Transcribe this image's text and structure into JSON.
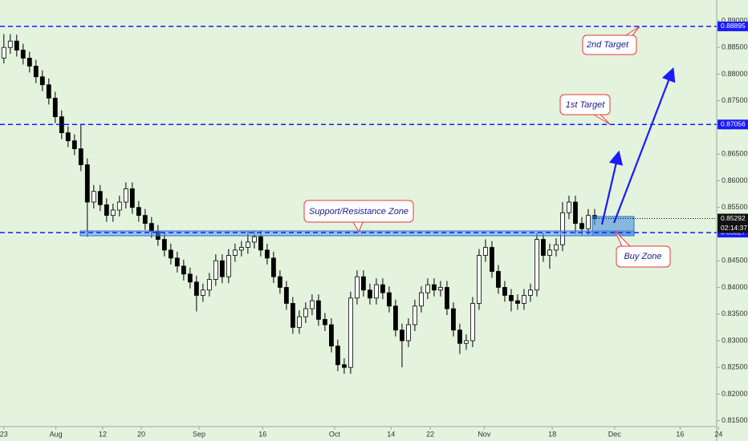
{
  "chart_data": {
    "type": "candlestick",
    "open": [
      0.883,
      0.885,
      0.8862,
      0.8845,
      0.883,
      0.8815,
      0.8795,
      0.878,
      0.8755,
      0.872,
      0.869,
      0.8675,
      0.866,
      0.863,
      0.856,
      0.858,
      0.8555,
      0.8535,
      0.8545,
      0.856,
      0.8585,
      0.855,
      0.8535,
      0.852,
      0.8505,
      0.849,
      0.847,
      0.8455,
      0.844,
      0.8425,
      0.841,
      0.8385,
      0.8395,
      0.8415,
      0.845,
      0.842,
      0.846,
      0.847,
      0.8475,
      0.8485,
      0.8495,
      0.847,
      0.8455,
      0.842,
      0.84,
      0.837,
      0.8325,
      0.8345,
      0.836,
      0.8375,
      0.834,
      0.833,
      0.829,
      0.8255,
      0.825,
      0.838,
      0.842,
      0.8395,
      0.838,
      0.8405,
      0.839,
      0.8365,
      0.832,
      0.83,
      0.833,
      0.8365,
      0.839,
      0.8405,
      0.8395,
      0.84,
      0.836,
      0.832,
      0.8295,
      0.83,
      0.837,
      0.846,
      0.8475,
      0.843,
      0.84,
      0.8385,
      0.8375,
      0.837,
      0.8385,
      0.8395,
      0.849,
      0.846,
      0.847,
      0.848,
      0.854,
      0.856,
      0.852,
      0.851,
      0.8535
    ],
    "high": [
      0.8875,
      0.8875,
      0.8874,
      0.8857,
      0.8842,
      0.8827,
      0.8807,
      0.8792,
      0.8767,
      0.8732,
      0.8702,
      0.8687,
      0.8705,
      0.8642,
      0.8592,
      0.8592,
      0.8567,
      0.8557,
      0.8572,
      0.8597,
      0.8597,
      0.8562,
      0.8547,
      0.8532,
      0.8517,
      0.8502,
      0.8482,
      0.8467,
      0.8452,
      0.8437,
      0.8422,
      0.8407,
      0.8427,
      0.8462,
      0.8462,
      0.8472,
      0.8482,
      0.8487,
      0.8505,
      0.8507,
      0.8507,
      0.8482,
      0.8467,
      0.8432,
      0.8412,
      0.8382,
      0.8357,
      0.8372,
      0.8387,
      0.8387,
      0.8352,
      0.8342,
      0.8302,
      0.8267,
      0.8392,
      0.8432,
      0.8432,
      0.8407,
      0.8417,
      0.8417,
      0.8402,
      0.8377,
      0.8332,
      0.8342,
      0.8377,
      0.8402,
      0.8417,
      0.8417,
      0.8412,
      0.8412,
      0.8372,
      0.8332,
      0.8312,
      0.8382,
      0.8472,
      0.849,
      0.8487,
      0.8442,
      0.8412,
      0.8397,
      0.8387,
      0.8397,
      0.8407,
      0.8502,
      0.8502,
      0.8482,
      0.8492,
      0.856,
      0.8572,
      0.8572,
      0.8532,
      0.8547,
      0.8547
    ],
    "low": [
      0.882,
      0.8838,
      0.8833,
      0.8818,
      0.8803,
      0.8783,
      0.8768,
      0.8743,
      0.8708,
      0.8678,
      0.8663,
      0.8648,
      0.8618,
      0.8495,
      0.8548,
      0.8543,
      0.8523,
      0.8523,
      0.8533,
      0.8548,
      0.8538,
      0.8523,
      0.8508,
      0.8493,
      0.8478,
      0.8458,
      0.8443,
      0.8428,
      0.8413,
      0.8398,
      0.8355,
      0.8373,
      0.8383,
      0.8403,
      0.8408,
      0.8408,
      0.8448,
      0.8458,
      0.8463,
      0.8473,
      0.8458,
      0.8443,
      0.8408,
      0.8388,
      0.8358,
      0.8313,
      0.8313,
      0.8333,
      0.8348,
      0.8328,
      0.8318,
      0.8278,
      0.8243,
      0.8238,
      0.8238,
      0.8368,
      0.8383,
      0.8368,
      0.8368,
      0.8378,
      0.8353,
      0.8308,
      0.825,
      0.8288,
      0.8318,
      0.8353,
      0.8378,
      0.8383,
      0.8383,
      0.8348,
      0.8308,
      0.8275,
      0.8283,
      0.8288,
      0.8358,
      0.8448,
      0.8418,
      0.8388,
      0.8373,
      0.8355,
      0.8358,
      0.8358,
      0.8373,
      0.8383,
      0.8448,
      0.8435,
      0.8458,
      0.8468,
      0.8528,
      0.85,
      0.8498,
      0.8498,
      0.8517
    ],
    "close": [
      0.885,
      0.8862,
      0.8845,
      0.883,
      0.8815,
      0.8795,
      0.878,
      0.8755,
      0.872,
      0.869,
      0.8675,
      0.866,
      0.863,
      0.856,
      0.858,
      0.8555,
      0.8535,
      0.8545,
      0.856,
      0.8585,
      0.855,
      0.8535,
      0.852,
      0.8505,
      0.849,
      0.847,
      0.8455,
      0.844,
      0.8425,
      0.841,
      0.8385,
      0.8395,
      0.8415,
      0.845,
      0.842,
      0.846,
      0.847,
      0.8475,
      0.8485,
      0.8495,
      0.847,
      0.8455,
      0.842,
      0.84,
      0.837,
      0.8325,
      0.8345,
      0.836,
      0.8375,
      0.834,
      0.833,
      0.829,
      0.8255,
      0.825,
      0.838,
      0.842,
      0.8395,
      0.838,
      0.8405,
      0.839,
      0.8365,
      0.832,
      0.83,
      0.833,
      0.8365,
      0.839,
      0.8405,
      0.8395,
      0.84,
      0.836,
      0.832,
      0.8295,
      0.83,
      0.837,
      0.846,
      0.8475,
      0.843,
      0.84,
      0.8385,
      0.8375,
      0.837,
      0.8385,
      0.8395,
      0.849,
      0.846,
      0.847,
      0.848,
      0.854,
      0.856,
      0.852,
      0.851,
      0.8535,
      0.8529
    ],
    "up_color": "#ffffff",
    "down_color": "#000000",
    "ylim": [
      0.8139,
      0.8939
    ],
    "yticks": [
      {
        "value": 0.815,
        "label": "0.81500"
      },
      {
        "value": 0.82,
        "label": "0.82000"
      },
      {
        "value": 0.825,
        "label": "0.82500"
      },
      {
        "value": 0.83,
        "label": "0.83000"
      },
      {
        "value": 0.835,
        "label": "0.83500"
      },
      {
        "value": 0.84,
        "label": "0.84000"
      },
      {
        "value": 0.845,
        "label": "0.84500"
      },
      {
        "value": 0.85,
        "label": "0.85000"
      },
      {
        "value": 0.855,
        "label": "0.85500"
      },
      {
        "value": 0.86,
        "label": "0.86000"
      },
      {
        "value": 0.865,
        "label": "0.86500"
      },
      {
        "value": 0.87,
        "label": "0.87000"
      },
      {
        "value": 0.875,
        "label": "0.87500"
      },
      {
        "value": 0.88,
        "label": "0.88000"
      },
      {
        "value": 0.885,
        "label": "0.88500"
      },
      {
        "value": 0.89,
        "label": "0.89000"
      }
    ],
    "xlim": [
      -0.6,
      111
    ],
    "xticks": [
      {
        "value": 0,
        "label": "23"
      },
      {
        "value": 8.1,
        "label": "Aug"
      },
      {
        "value": 15.4,
        "label": "12"
      },
      {
        "value": 21.4,
        "label": "20"
      },
      {
        "value": 30.4,
        "label": "Sep"
      },
      {
        "value": 40.3,
        "label": "16"
      },
      {
        "value": 51.5,
        "label": "Oct"
      },
      {
        "value": 60.3,
        "label": "14"
      },
      {
        "value": 66.4,
        "label": "22"
      },
      {
        "value": 74.8,
        "label": "Nov"
      },
      {
        "value": 85.4,
        "label": "18"
      },
      {
        "value": 95.1,
        "label": "Dec"
      },
      {
        "value": 105.3,
        "label": "16"
      },
      {
        "value": 111.3,
        "label": "24"
      }
    ],
    "levels": [
      0.88895,
      0.87056,
      0.85027
    ],
    "level_color": "#1a1aff",
    "last_price": 0.85292,
    "countdown": "02:14:37",
    "annotations": [
      "2nd Target",
      "1st Target",
      "Support/Resistance Zone",
      "Buy Zone"
    ],
    "grid": false
  }
}
